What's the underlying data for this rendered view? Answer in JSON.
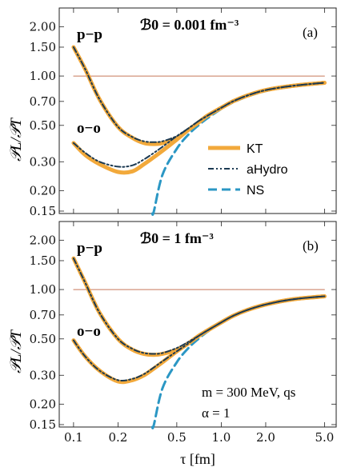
{
  "figure": {
    "ylabel": "𝒫L/𝒫T",
    "xlabel": "τ [fm]",
    "xticks": [
      "0.1",
      "0.2",
      "0.5",
      "1.0",
      "2.0",
      "5.0"
    ],
    "yticks": [
      "0.15",
      "0.20",
      "0.30",
      "0.50",
      "0.70",
      "1.00",
      "1.50",
      "2.00"
    ]
  },
  "colors": {
    "KT": "#f2a93b",
    "aHydro": "#1c3a52",
    "NS": "#2b97c4",
    "reference": "#c8785a"
  },
  "legend": [
    {
      "key": "KT",
      "label": "KT"
    },
    {
      "key": "aHydro",
      "label": "aHydro"
    },
    {
      "key": "NS",
      "label": "NS"
    }
  ],
  "annotations": {
    "note_mass": "m = 300 MeV, qs",
    "note_alpha": "α = 1"
  },
  "chart_data": [
    {
      "type": "line",
      "panel_label": "(a)",
      "field_label": "ℬ0 = 0.001 fm⁻³",
      "group_labels": {
        "pp": "p−p",
        "oo": "o−o"
      },
      "xlabel": "",
      "ylabel": "𝒫L/𝒫T",
      "xscale": "log",
      "yscale": "log",
      "xlim": [
        0.08,
        6.0
      ],
      "ylim": [
        0.145,
        2.6
      ],
      "x": [
        0.1,
        0.12,
        0.15,
        0.2,
        0.25,
        0.3,
        0.35,
        0.4,
        0.5,
        0.6,
        0.7,
        0.8,
        1.0,
        1.2,
        1.5,
        2.0,
        3.0,
        5.0
      ],
      "series": [
        {
          "name": "KT",
          "group": "p−p",
          "values": [
            1.5,
            1.1,
            0.72,
            0.49,
            0.42,
            0.39,
            0.385,
            0.39,
            0.42,
            0.47,
            0.52,
            0.57,
            0.64,
            0.7,
            0.76,
            0.82,
            0.87,
            0.91
          ]
        },
        {
          "name": "KT",
          "group": "o−o",
          "values": [
            0.39,
            0.33,
            0.29,
            0.26,
            0.262,
            0.29,
            0.32,
            0.35,
            0.41,
            0.47,
            0.52,
            0.57,
            0.64,
            0.7,
            0.76,
            0.82,
            0.87,
            0.91
          ]
        },
        {
          "name": "aHydro",
          "group": "p−p",
          "values": [
            1.5,
            1.1,
            0.72,
            0.49,
            0.425,
            0.4,
            0.395,
            0.4,
            0.43,
            0.48,
            0.53,
            0.57,
            0.64,
            0.7,
            0.76,
            0.82,
            0.87,
            0.91
          ]
        },
        {
          "name": "aHydro",
          "group": "o−o",
          "values": [
            0.39,
            0.34,
            0.3,
            0.28,
            0.285,
            0.31,
            0.34,
            0.37,
            0.43,
            0.48,
            0.53,
            0.57,
            0.64,
            0.7,
            0.76,
            0.82,
            0.87,
            0.91
          ]
        },
        {
          "name": "NS",
          "group": "",
          "values": [
            null,
            null,
            null,
            null,
            null,
            null,
            0.15,
            0.25,
            0.36,
            0.44,
            0.5,
            0.55,
            0.63,
            0.69,
            0.75,
            0.81,
            0.87,
            0.91
          ]
        },
        {
          "name": "",
          "group": "reference",
          "values": [
            1.0,
            1.0,
            1.0,
            1.0,
            1.0,
            1.0,
            1.0,
            1.0,
            1.0,
            1.0,
            1.0,
            1.0,
            1.0,
            1.0,
            1.0,
            1.0,
            1.0,
            1.0
          ]
        }
      ]
    },
    {
      "type": "line",
      "panel_label": "(b)",
      "field_label": "ℬ0 = 1 fm⁻³",
      "group_labels": {
        "pp": "p−p",
        "oo": "o−o"
      },
      "xlabel": "τ [fm]",
      "ylabel": "𝒫L/𝒫T",
      "xscale": "log",
      "yscale": "log",
      "xlim": [
        0.08,
        6.0
      ],
      "ylim": [
        0.145,
        2.6
      ],
      "x": [
        0.1,
        0.12,
        0.15,
        0.2,
        0.25,
        0.3,
        0.35,
        0.4,
        0.5,
        0.6,
        0.7,
        0.8,
        1.0,
        1.2,
        1.5,
        2.0,
        3.0,
        5.0
      ],
      "series": [
        {
          "name": "KT",
          "group": "p−p",
          "values": [
            1.55,
            1.1,
            0.72,
            0.5,
            0.43,
            0.405,
            0.4,
            0.405,
            0.43,
            0.47,
            0.52,
            0.56,
            0.63,
            0.69,
            0.75,
            0.81,
            0.87,
            0.91
          ]
        },
        {
          "name": "KT",
          "group": "o−o",
          "values": [
            0.49,
            0.39,
            0.32,
            0.275,
            0.28,
            0.3,
            0.33,
            0.36,
            0.42,
            0.47,
            0.52,
            0.56,
            0.63,
            0.69,
            0.75,
            0.81,
            0.87,
            0.91
          ]
        },
        {
          "name": "aHydro",
          "group": "p−p",
          "values": [
            1.55,
            1.1,
            0.72,
            0.5,
            0.435,
            0.41,
            0.405,
            0.41,
            0.44,
            0.48,
            0.52,
            0.56,
            0.63,
            0.69,
            0.75,
            0.81,
            0.87,
            0.91
          ]
        },
        {
          "name": "aHydro",
          "group": "o−o",
          "values": [
            0.49,
            0.39,
            0.32,
            0.28,
            0.285,
            0.305,
            0.335,
            0.365,
            0.42,
            0.47,
            0.52,
            0.56,
            0.63,
            0.69,
            0.75,
            0.81,
            0.87,
            0.91
          ]
        },
        {
          "name": "NS",
          "group": "",
          "values": [
            null,
            null,
            null,
            null,
            null,
            null,
            0.15,
            0.25,
            0.36,
            0.44,
            0.5,
            0.55,
            0.63,
            0.69,
            0.75,
            0.81,
            0.87,
            0.91
          ]
        },
        {
          "name": "",
          "group": "reference",
          "values": [
            1.0,
            1.0,
            1.0,
            1.0,
            1.0,
            1.0,
            1.0,
            1.0,
            1.0,
            1.0,
            1.0,
            1.0,
            1.0,
            1.0,
            1.0,
            1.0,
            1.0,
            1.0
          ]
        }
      ]
    }
  ]
}
